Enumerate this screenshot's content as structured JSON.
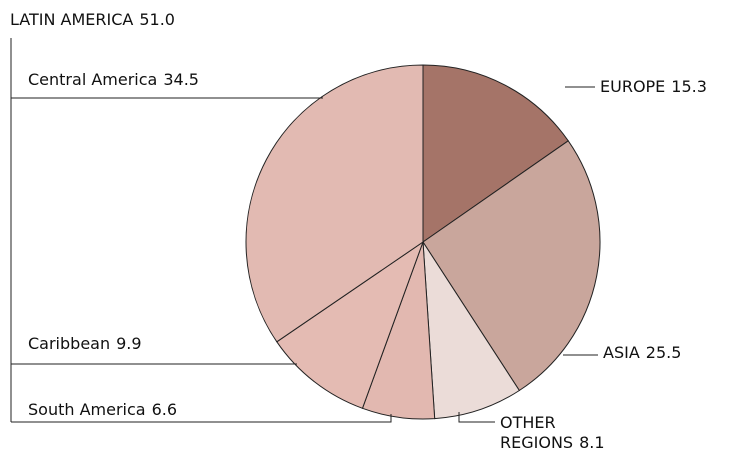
{
  "chart_data": {
    "type": "pie",
    "categories": [
      "EUROPE",
      "ASIA",
      "OTHER REGIONS",
      "South America",
      "Caribbean",
      "Central America"
    ],
    "values": [
      15.3,
      25.5,
      8.1,
      6.6,
      9.9,
      34.5
    ],
    "colors": [
      "#a57468",
      "#c9a69c",
      "#ebdcd8",
      "#e2b8b0",
      "#e4bbb3",
      "#e2bab2"
    ],
    "group": {
      "name": "LATIN AMERICA",
      "value": 51,
      "value_label": "51.0"
    }
  }
}
